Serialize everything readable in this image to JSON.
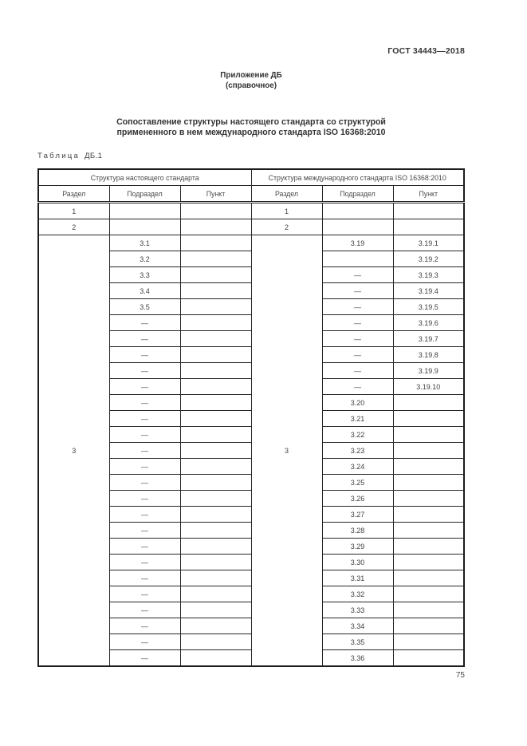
{
  "page": {
    "doc_number": "ГОСТ 34443—2018",
    "appendix_label": "Приложение ДБ",
    "appendix_note": "(справочное)",
    "title_line1": "Сопоставление структуры настоящего стандарта со структурой",
    "title_line2": "примененного в нем международного стандарта ISO 16368:2010",
    "table_label_word": "Таблица",
    "table_label_number": "ДБ.1",
    "page_number": "75"
  },
  "colors": {
    "background": "#ffffff",
    "text": "#414141",
    "border": "#262626"
  },
  "table": {
    "group_headers": [
      "Структура настоящего стандарта",
      "Структура международного стандарта ISO 16368:2010"
    ],
    "column_headers": [
      "Раздел",
      "Подраздел",
      "Пункт",
      "Раздел",
      "Подраздел",
      "Пункт"
    ],
    "top_rows": [
      [
        "1",
        "",
        "",
        "1",
        "",
        ""
      ],
      [
        "2",
        "",
        "",
        "2",
        "",
        ""
      ]
    ],
    "section3": {
      "left_razdel": "3",
      "right_razdel": "3",
      "rows": [
        [
          "3.1",
          "",
          "3.19",
          "3.19.1"
        ],
        [
          "3.2",
          "",
          "",
          "3.19.2"
        ],
        [
          "3.3",
          "",
          "—",
          "3.19.3"
        ],
        [
          "3.4",
          "",
          "—",
          "3.19.4"
        ],
        [
          "3.5",
          "",
          "—",
          "3.19.5"
        ],
        [
          "—",
          "",
          "—",
          "3.19.6"
        ],
        [
          "—",
          "",
          "—",
          "3.19.7"
        ],
        [
          "—",
          "",
          "—",
          "3.19.8"
        ],
        [
          "—",
          "",
          "—",
          "3.19.9"
        ],
        [
          "—",
          "",
          "—",
          "3.19.10"
        ],
        [
          "—",
          "",
          "3.20",
          ""
        ],
        [
          "—",
          "",
          "3.21",
          ""
        ],
        [
          "—",
          "",
          "3.22",
          ""
        ],
        [
          "—",
          "",
          "3.23",
          ""
        ],
        [
          "—",
          "",
          "3.24",
          ""
        ],
        [
          "—",
          "",
          "3.25",
          ""
        ],
        [
          "—",
          "",
          "3.26",
          ""
        ],
        [
          "—",
          "",
          "3.27",
          ""
        ],
        [
          "—",
          "",
          "3.28",
          ""
        ],
        [
          "—",
          "",
          "3.29",
          ""
        ],
        [
          "—",
          "",
          "3.30",
          ""
        ],
        [
          "—",
          "",
          "3.31",
          ""
        ],
        [
          "—",
          "",
          "3.32",
          ""
        ],
        [
          "—",
          "",
          "3.33",
          ""
        ],
        [
          "—",
          "",
          "3.34",
          ""
        ],
        [
          "—",
          "",
          "3.35",
          ""
        ],
        [
          "—",
          "",
          "3.36",
          ""
        ]
      ]
    }
  }
}
